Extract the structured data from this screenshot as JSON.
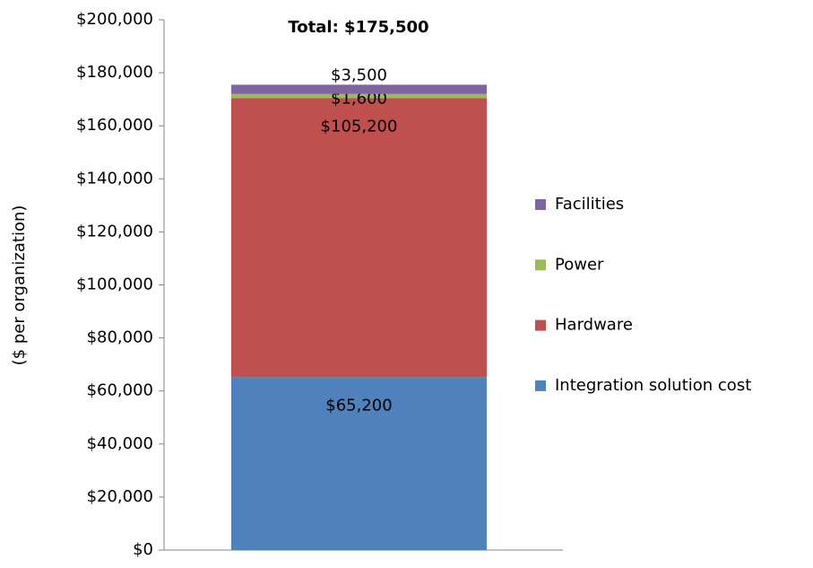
{
  "chart_data": {
    "type": "stacked_bar",
    "annotation": "Total:  $175,500",
    "y_label": "($ per organization)",
    "categories": [
      null
    ],
    "series": [
      {
        "name": "Integration solution cost",
        "color": "#4f81bd",
        "values": [
          65200
        ],
        "value_labels": [
          "$65,200"
        ]
      },
      {
        "name": "Hardware",
        "color": "#c0504d",
        "values": [
          105200
        ],
        "value_labels": [
          "$105,200"
        ]
      },
      {
        "name": "Power",
        "color": "#9bbb59",
        "values": [
          1600
        ],
        "value_labels": [
          "$1,600"
        ]
      },
      {
        "name": "Facilities",
        "color": "#8064a2",
        "values": [
          3500
        ],
        "value_labels": [
          "$3,500"
        ]
      }
    ],
    "ylim": [
      0,
      200000
    ],
    "yticks": [
      {
        "value": 0,
        "label": "$0"
      },
      {
        "value": 20000,
        "label": "$20,000"
      },
      {
        "value": 40000,
        "label": "$40,000"
      },
      {
        "value": 60000,
        "label": "$60,000"
      },
      {
        "value": 80000,
        "label": "$80,000"
      },
      {
        "value": 100000,
        "label": "$100,000"
      },
      {
        "value": 120000,
        "label": "$120,000"
      },
      {
        "value": 140000,
        "label": "$140,000"
      },
      {
        "value": 160000,
        "label": "$160,000"
      },
      {
        "value": 180000,
        "label": "$180,000"
      },
      {
        "value": 200000,
        "label": "$200,000"
      }
    ],
    "grid": false,
    "legend": "right"
  }
}
